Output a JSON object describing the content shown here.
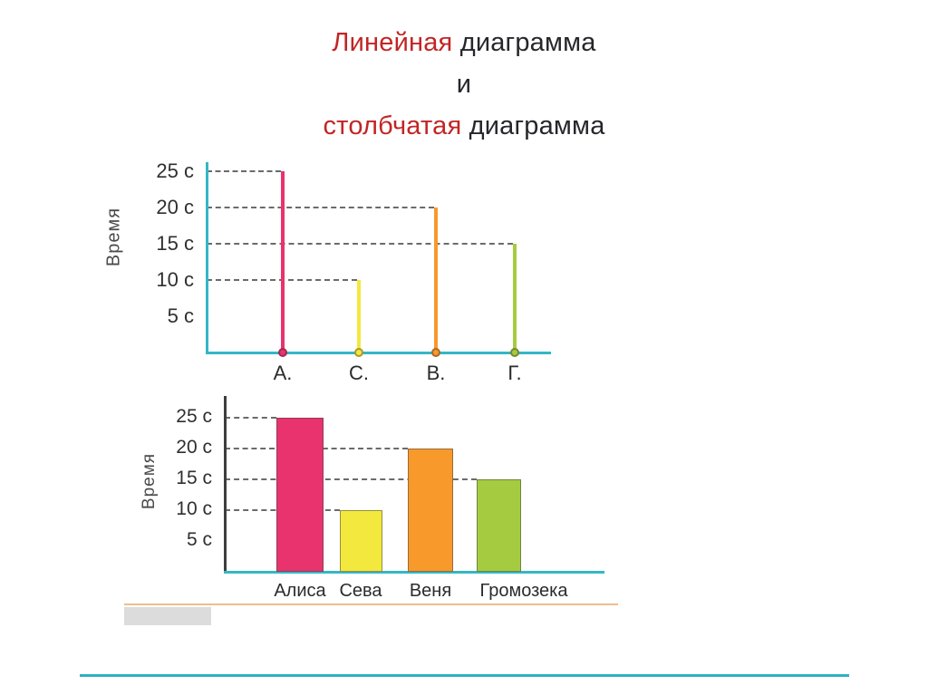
{
  "title": {
    "line1": {
      "red": "Линейная",
      "dark": " диаграмма"
    },
    "line2": {
      "dark": "и"
    },
    "line3": {
      "red": "столбчатая",
      "dark": " диаграмма"
    }
  },
  "colors": {
    "title_red": "#c22525",
    "title_dark": "#26262b",
    "axis_teal": "#34b7c6",
    "axis_dark": "#3e3e3e",
    "dash_gray": "#6b6b6b",
    "page_edge_orange": "#edbd8c",
    "scan_smudge_gray": "#dcdcdc",
    "footer_line_teal": "#2bb2c3",
    "series": [
      "#e8336e",
      "#f3e93e",
      "#f8992c",
      "#a5cc40"
    ]
  },
  "chart_data": [
    {
      "type": "line",
      "variant": "vertical-stick",
      "title": "Линейная диаграмма",
      "ylabel": "Время",
      "unit": "с",
      "categories": [
        "А.",
        "С.",
        "В.",
        "Г."
      ],
      "values": [
        25,
        10,
        20,
        15
      ],
      "colors": [
        "#e8336e",
        "#f3e93e",
        "#f8992c",
        "#a5cc40"
      ],
      "ytick_values": [
        25,
        20,
        15,
        10,
        5
      ],
      "ytick_labels": [
        "25 с",
        "20 с",
        "15 с",
        "10 с",
        "5 с"
      ],
      "ylim": [
        0,
        26
      ],
      "grid": "dashed leader lines from axis to each stick",
      "legend": "none"
    },
    {
      "type": "bar",
      "title": "Столбчатая диаграмма",
      "ylabel": "Время",
      "unit": "с",
      "categories": [
        "Алиса",
        "Сева",
        "Веня",
        "Громозека"
      ],
      "values": [
        25,
        10,
        20,
        15
      ],
      "colors": [
        "#e8336e",
        "#f3e93e",
        "#f8992c",
        "#a5cc40"
      ],
      "ytick_values": [
        25,
        20,
        15,
        10,
        5
      ],
      "ytick_labels": [
        "25 с",
        "20 с",
        "15 с",
        "10 с",
        "5 с"
      ],
      "ylim": [
        0,
        27
      ],
      "grid": "dashed leader lines from axis to each bar",
      "legend": "none"
    }
  ]
}
